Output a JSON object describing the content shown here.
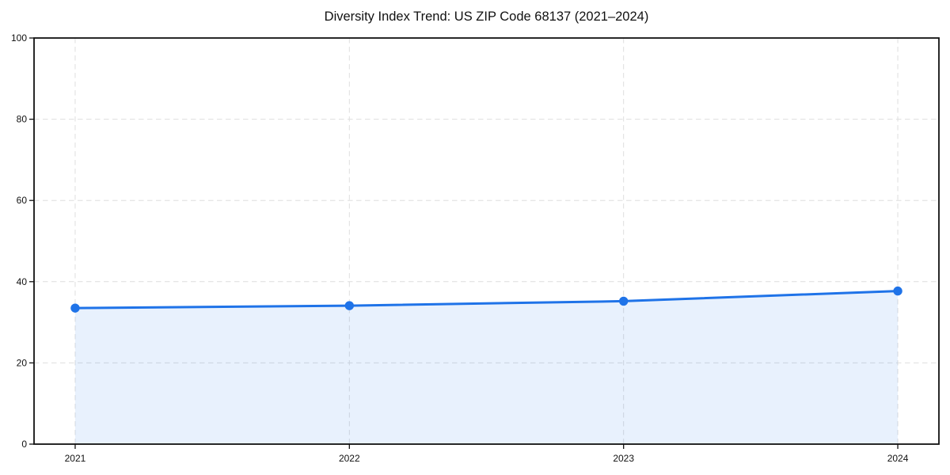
{
  "chart_data": {
    "type": "line",
    "title": "Diversity Index Trend: US ZIP Code 68137 (2021–2024)",
    "x": [
      2021,
      2022,
      2023,
      2024
    ],
    "series": [
      {
        "name": "Diversity Index",
        "values": [
          33.5,
          34.1,
          35.2,
          37.7
        ]
      }
    ],
    "xlabel": "",
    "ylabel": "",
    "xlim": [
      2020.85,
      2024.15
    ],
    "ylim": [
      0,
      100
    ],
    "xticks": [
      2021,
      2022,
      2023,
      2024
    ],
    "yticks": [
      0,
      20,
      40,
      60,
      80,
      100
    ],
    "grid": true,
    "grid_style": "dashed",
    "legend_position": "none",
    "area_fill": true,
    "marker": "circle",
    "colors": {
      "line": "#1f73e8",
      "area": "rgba(31,115,232,0.10)",
      "grid": "#dedede",
      "axis": "#111111",
      "text": "#111111",
      "background": "#ffffff"
    }
  }
}
